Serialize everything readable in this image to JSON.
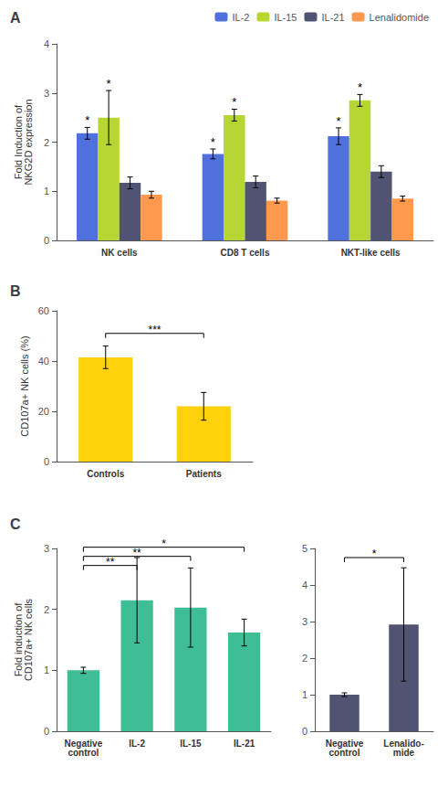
{
  "chart_data": [
    {
      "type": "bar",
      "title": "A",
      "categories": [
        "NK cells",
        "CD8 T cells",
        "NKT-like cells"
      ],
      "series": [
        {
          "name": "IL-2",
          "values": [
            2.18,
            1.76,
            2.12
          ],
          "errors": [
            0.12,
            0.1,
            0.17
          ]
        },
        {
          "name": "IL-15",
          "values": [
            2.5,
            2.55,
            2.85
          ],
          "errors": [
            0.55,
            0.12,
            0.12
          ]
        },
        {
          "name": "IL-21",
          "values": [
            1.17,
            1.19,
            1.4
          ],
          "errors": [
            0.12,
            0.12,
            0.12
          ]
        },
        {
          "name": "Lenalidomide",
          "values": [
            0.93,
            0.81,
            0.85
          ],
          "errors": [
            0.07,
            0.05,
            0.05
          ]
        }
      ],
      "ylabel": "Fold Induction of\nNKG2D expression",
      "ylim": [
        0,
        4
      ],
      "yticks": [
        0,
        1,
        2,
        3,
        4
      ],
      "legend": "upper right",
      "grid": false,
      "annotations": [
        {
          "series": "IL-2",
          "category": "NK cells",
          "text": "*"
        },
        {
          "series": "IL-2",
          "category": "CD8 T cells",
          "text": "*"
        },
        {
          "series": "IL-2",
          "category": "NKT-like cells",
          "text": "*"
        },
        {
          "series": "IL-15",
          "category": "NK cells",
          "text": "*"
        },
        {
          "series": "IL-15",
          "category": "CD8 T cells",
          "text": "*"
        },
        {
          "series": "IL-15",
          "category": "NKT-like cells",
          "text": "*"
        }
      ]
    },
    {
      "type": "bar",
      "title": "B",
      "categories": [
        "Controls",
        "Patients"
      ],
      "values": [
        41.5,
        22.0
      ],
      "errors": [
        4.5,
        5.5
      ],
      "ylabel": "CD107a+ NK cells (%)",
      "ylim": [
        0,
        60
      ],
      "yticks": [
        0,
        20,
        40,
        60
      ],
      "grid": false,
      "annotations": [
        {
          "text": "***",
          "x1": "Controls",
          "x2": "Patients",
          "y": 51
        }
      ]
    },
    {
      "type": "bar",
      "title": "C",
      "categories": [
        "Negative\ncontrol",
        "IL-2",
        "IL-15",
        "IL-21"
      ],
      "values": [
        1.0,
        2.15,
        2.03,
        1.62
      ],
      "errors": [
        0.05,
        0.7,
        0.65,
        0.22
      ],
      "ylabel": "Fold induction of\nCD107a+ NK cells",
      "ylim": [
        0,
        3
      ],
      "yticks": [
        0,
        1,
        2,
        3
      ],
      "grid": false,
      "annotations": [
        {
          "text": "**",
          "x1": "Negative\ncontrol",
          "x2": "IL-2",
          "y": 2.72
        },
        {
          "text": "**",
          "x1": "Negative\ncontrol",
          "x2": "IL-15",
          "y": 2.87
        },
        {
          "text": "*",
          "x1": "Negative\ncontrol",
          "x2": "IL-21",
          "y": 3.02
        }
      ]
    },
    {
      "type": "bar",
      "categories": [
        "Negative\ncontrol",
        "Lenalido-\nmide"
      ],
      "values": [
        1.0,
        2.92
      ],
      "errors": [
        0.05,
        1.55
      ],
      "ylim": [
        0,
        5
      ],
      "yticks": [
        0,
        1,
        2,
        3,
        4,
        5
      ],
      "grid": false,
      "annotations": [
        {
          "text": "*",
          "x1": "Negative\ncontrol",
          "x2": "Lenalido-\nmide",
          "y": 4.75
        }
      ]
    }
  ]
}
